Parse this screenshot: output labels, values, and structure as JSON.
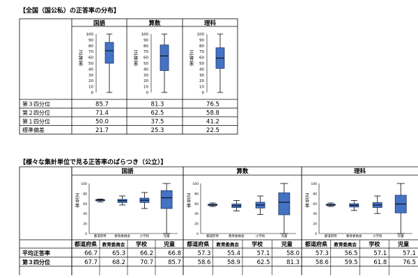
{
  "section1": {
    "title": "【全国（国公私）の正答率の分布】",
    "subjects": [
      "国語",
      "算数",
      "理科"
    ],
    "ylabel": "正答率",
    "rows": [
      {
        "label": "第３四分位",
        "values": [
          "85.7",
          "81.3",
          "76.5"
        ]
      },
      {
        "label": "第２四分位",
        "values": [
          "71.4",
          "62.5",
          "58.8"
        ]
      },
      {
        "label": "第１四分位",
        "values": [
          "50.0",
          "37.5",
          "41.2"
        ]
      },
      {
        "label": "標準偏差",
        "values": [
          "21.7",
          "25.3",
          "22.5"
        ]
      }
    ]
  },
  "section2": {
    "title": "【様々な集計単位で見る正答率のばらつき（公立）】",
    "subjects": [
      "国語",
      "算数",
      "理科"
    ],
    "ylabel": "正答率",
    "categories": [
      "都道府県",
      "教育委員会",
      "学校",
      "児童"
    ],
    "rows": [
      {
        "label": "平均正答率",
        "values": [
          "66.7",
          "65.3",
          "66.2",
          "66.8",
          "57.3",
          "55.4",
          "57.1",
          "58.0",
          "57.3",
          "56.5",
          "57.1",
          "57.1"
        ]
      },
      {
        "label": "第３四分位",
        "values": [
          "67.7",
          "68.2",
          "70.7",
          "85.7",
          "58.6",
          "58.9",
          "62.5",
          "81.3",
          "58.6",
          "59.5",
          "61.8",
          "76.5"
        ]
      }
    ]
  },
  "chart_data": [
    {
      "type": "box",
      "ylabel": "正答率",
      "ylim": [
        0,
        100
      ],
      "yticks": [
        0,
        10,
        20,
        30,
        40,
        50,
        60,
        70,
        80,
        90,
        100
      ],
      "categories": [
        "国語",
        "算数",
        "理科"
      ],
      "series": [
        {
          "values": [
            {
              "min": 0,
              "q1": 50.0,
              "median": 71.4,
              "q3": 85.7,
              "max": 100
            },
            {
              "min": 0,
              "q1": 37.5,
              "median": 62.5,
              "q3": 81.3,
              "max": 100
            },
            {
              "min": 0,
              "q1": 41.2,
              "median": 58.8,
              "q3": 76.5,
              "max": 100
            }
          ]
        }
      ]
    },
    {
      "type": "box",
      "ylabel": "正答率",
      "ylim": [
        0,
        100
      ],
      "yticks": [
        0,
        20,
        40,
        60,
        80,
        100
      ],
      "subjects": [
        "国語",
        "算数",
        "理科"
      ],
      "categories": [
        "都道府県",
        "教育委員会",
        "小学校",
        "児童"
      ],
      "series": [
        {
          "values": [
            {
              "min": 63,
              "q1": 65.5,
              "median": 66.8,
              "q3": 67.7,
              "max": 69
            },
            {
              "min": 57,
              "q1": 62,
              "median": 65.5,
              "q3": 68.2,
              "max": 75
            },
            {
              "min": 50,
              "q1": 62,
              "median": 66.5,
              "q3": 70.7,
              "max": 82
            },
            {
              "min": 0,
              "q1": 50,
              "median": 71.4,
              "q3": 85.7,
              "max": 100
            }
          ]
        },
        {
          "values": [
            {
              "min": 54,
              "q1": 56,
              "median": 57.2,
              "q3": 58.6,
              "max": 61
            },
            {
              "min": 45,
              "q1": 52,
              "median": 55.5,
              "q3": 58.9,
              "max": 66
            },
            {
              "min": 38,
              "q1": 51,
              "median": 57,
              "q3": 62.5,
              "max": 75
            },
            {
              "min": 0,
              "q1": 37.5,
              "median": 62.5,
              "q3": 81.3,
              "max": 100
            }
          ]
        },
        {
          "values": [
            {
              "min": 54,
              "q1": 56,
              "median": 57.2,
              "q3": 58.6,
              "max": 61
            },
            {
              "min": 46,
              "q1": 53,
              "median": 56.5,
              "q3": 59.5,
              "max": 66
            },
            {
              "min": 40,
              "q1": 52,
              "median": 57,
              "q3": 61.8,
              "max": 75
            },
            {
              "min": 0,
              "q1": 41.2,
              "median": 58.8,
              "q3": 76.5,
              "max": 100
            }
          ]
        }
      ]
    }
  ],
  "colors": {
    "box_fill": "#4472c4",
    "box_stroke": "#1f3864",
    "line": "#000000"
  }
}
